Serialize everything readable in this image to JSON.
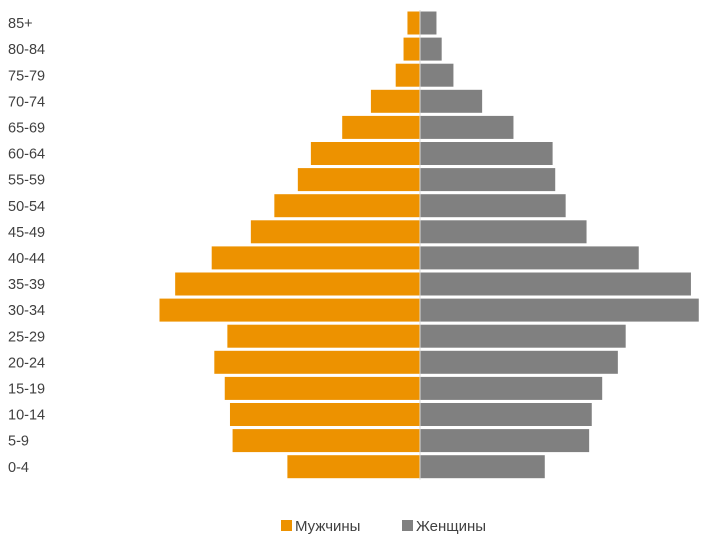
{
  "chart_data": {
    "type": "bar",
    "orientation": "horizontal-pyramid",
    "categories": [
      "0-4",
      "5-9",
      "10-14",
      "15-19",
      "20-24",
      "25-29",
      "30-34",
      "35-39",
      "40-44",
      "45-49",
      "50-54",
      "55-59",
      "60-64",
      "65-69",
      "70-74",
      "75-79",
      "80-84",
      "85+"
    ],
    "series": [
      {
        "name": "Мужчины",
        "side": "left",
        "color": "#ED9200",
        "values": [
          5.1,
          7.2,
          7.3,
          7.5,
          7.9,
          7.4,
          10.0,
          9.4,
          8.0,
          6.5,
          5.6,
          4.7,
          4.2,
          3.0,
          1.9,
          0.95,
          0.65,
          0.5
        ]
      },
      {
        "name": "Женщины",
        "side": "right",
        "color": "#808080",
        "values": [
          4.8,
          6.5,
          6.6,
          7.0,
          7.6,
          7.9,
          10.7,
          10.4,
          8.4,
          6.4,
          5.6,
          5.2,
          5.1,
          3.6,
          2.4,
          1.3,
          0.85,
          0.65
        ]
      }
    ],
    "xlim": [
      -10,
      10.7
    ],
    "grid": false,
    "legend_position": "bottom-center"
  }
}
